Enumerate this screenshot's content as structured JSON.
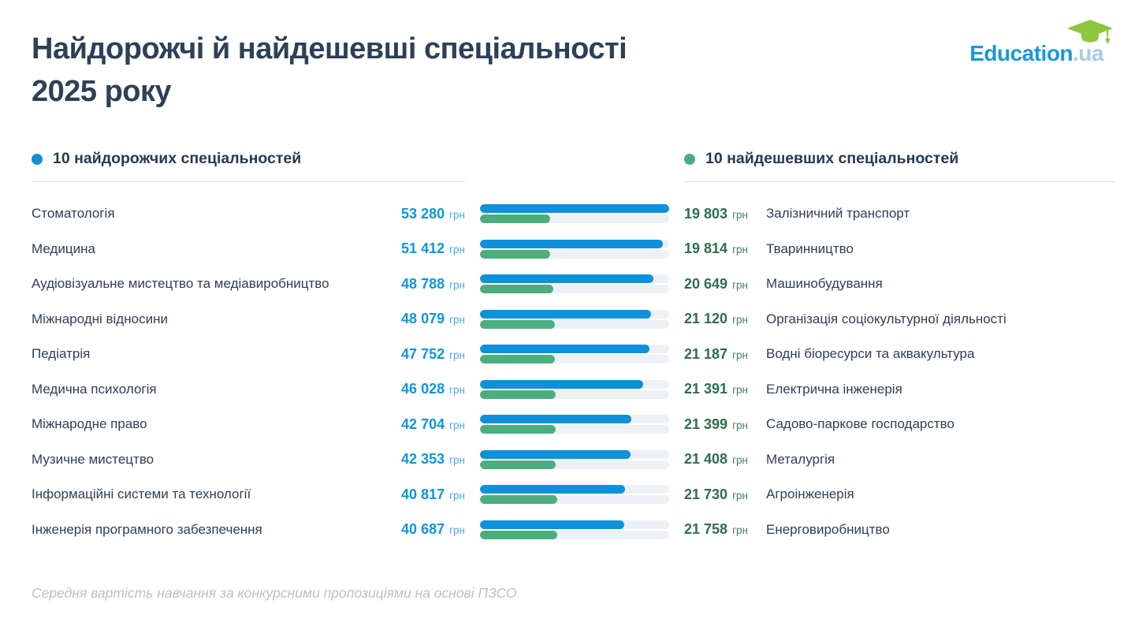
{
  "header": {
    "title_line1": "Найдорожчі й найдешевші спеціальності",
    "title_line2": "2025 року",
    "logo": {
      "brand": "Education",
      "tld": ".ua",
      "icon": "graduation-cap-icon",
      "cap_color": "#8dc63f",
      "brand_color": "#1b97dc"
    }
  },
  "footer": {
    "note": "Середня вартість навчання за конкурсними пропозиціями на основі ПЗСО"
  },
  "colors": {
    "expensive_accent": "#0f95dc",
    "cheap_accent": "#4cae7e",
    "cheap_value_text": "#2e6e4f",
    "title_text": "#2e4057",
    "bar_track": "#edf1f5"
  },
  "chart_data": {
    "type": "bar",
    "orientation": "horizontal",
    "unit": "грн",
    "max_value": 53280,
    "legend_position": "column headers",
    "grid": false,
    "series": [
      {
        "name": "10 найдорожчих спеціальностей",
        "color": "#0e91da",
        "categories": [
          "Стоматологія",
          "Медицина",
          "Аудіовізуальне мистецтво та медіавиробництво",
          "Міжнародні відносини",
          "Педіатрія",
          "Медична психологія",
          "Міжнародне право",
          "Музичне мистецтво",
          "Інформаційні системи та технології",
          "Інженерія програмного забезпечення"
        ],
        "values": [
          53280,
          51412,
          48788,
          48079,
          47752,
          46028,
          42704,
          42353,
          40817,
          40687
        ],
        "value_labels": [
          "53 280",
          "51 412",
          "48 788",
          "48 079",
          "47 752",
          "46 028",
          "42 704",
          "42 353",
          "40 817",
          "40 687"
        ]
      },
      {
        "name": "10 найдешевших спеціальностей",
        "color": "#4cae7e",
        "categories": [
          "Залізничний транспорт",
          "Тваринництво",
          "Машинобудування",
          "Організація соціокультурної діяльності",
          "Водні біоресурси та аквакультура",
          "Електрична інженерія",
          "Садово-паркове господарство",
          "Металургія",
          "Агроінженерія",
          "Енерговиробництво"
        ],
        "values": [
          19803,
          19814,
          20649,
          21120,
          21187,
          21391,
          21399,
          21408,
          21730,
          21758
        ],
        "value_labels": [
          "19 803",
          "19 814",
          "20 649",
          "21 120",
          "21 187",
          "21 391",
          "21 399",
          "21 408",
          "21 730",
          "21 758"
        ]
      }
    ]
  }
}
